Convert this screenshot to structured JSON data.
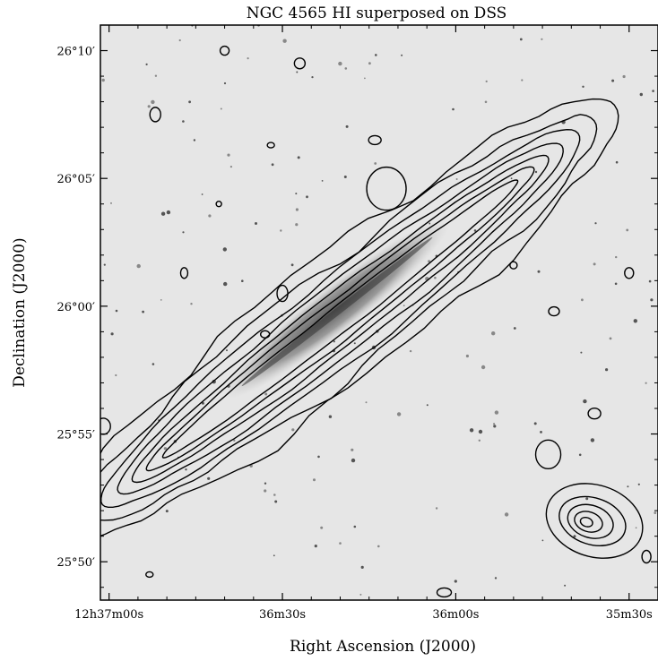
{
  "chart_data": {
    "type": "contour",
    "title": "NGC 4565 HI superposed on DSS",
    "xlabel": "Right Ascension (J2000)",
    "ylabel": "Declination (J2000)",
    "x_ticks": [
      {
        "label": "12h37m00s",
        "ra_sec": 0
      },
      {
        "label": "36m30s",
        "ra_sec": 30
      },
      {
        "label": "36m00s",
        "ra_sec": 60
      },
      {
        "label": "35m30s",
        "ra_sec": 90
      }
    ],
    "y_ticks": [
      {
        "label": "26°10′",
        "dec_arcmin": 10
      },
      {
        "label": "26°05′",
        "dec_arcmin": 5
      },
      {
        "label": "26°00′",
        "dec_arcmin": 0
      },
      {
        "label": "25°55′",
        "dec_arcmin": -5
      },
      {
        "label": "25°50′",
        "dec_arcmin": -10
      }
    ],
    "xlim_ra_sec": [
      -1.5,
      95
    ],
    "ylim_dec_arcmin": [
      -11.5,
      11
    ],
    "background": "DSS optical image (grayscale)",
    "colors": {
      "contour": "#000000",
      "background": "#e6e6e6"
    },
    "main_galaxy": {
      "name": "NGC 4565",
      "center": {
        "ra_sec": 40,
        "dec_arcmin": -0.5
      },
      "position_angle_deg_ccw_from_x": 38,
      "contour_levels": 7,
      "contour_half_lengths_arcmin": [
        13.6,
        12.6,
        11.8,
        11.0,
        10.3,
        9.6,
        8.8
      ],
      "contour_half_widths_arcmin": [
        2.4,
        1.95,
        1.6,
        1.3,
        1.0,
        0.75,
        0.5
      ]
    },
    "companion": {
      "center": {
        "ra_sec": 84,
        "dec_arcmin": -8.4
      },
      "contour_levels": 5
    }
  }
}
